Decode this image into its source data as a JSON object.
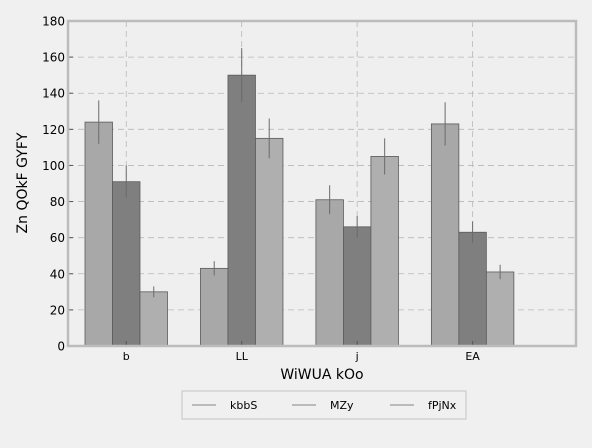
{
  "chart_data": {
    "type": "bar",
    "title": "",
    "xlabel": "WiWUA kOo",
    "ylabel": "Zn QOkF GYFY",
    "categories": [
      "b",
      "LL",
      "j",
      "EA"
    ],
    "ylim": [
      0,
      180
    ],
    "yticks": [
      0,
      20,
      40,
      60,
      80,
      100,
      120,
      140,
      160,
      180
    ],
    "grid": true,
    "legend_position": "bottom-center",
    "series": [
      {
        "name": "kbbS",
        "values": [
          124,
          43,
          81,
          123
        ],
        "errors": [
          12,
          4,
          8,
          12
        ],
        "color": "#a8a8a8"
      },
      {
        "name": "MZy",
        "values": [
          91,
          150,
          66,
          63
        ],
        "errors": [
          9,
          15,
          6,
          6
        ],
        "color": "#7f7f7f"
      },
      {
        "name": "fPjNx",
        "values": [
          30,
          115,
          105,
          41
        ],
        "errors": [
          3,
          11,
          10,
          4
        ],
        "color": "#afafaf"
      }
    ]
  }
}
